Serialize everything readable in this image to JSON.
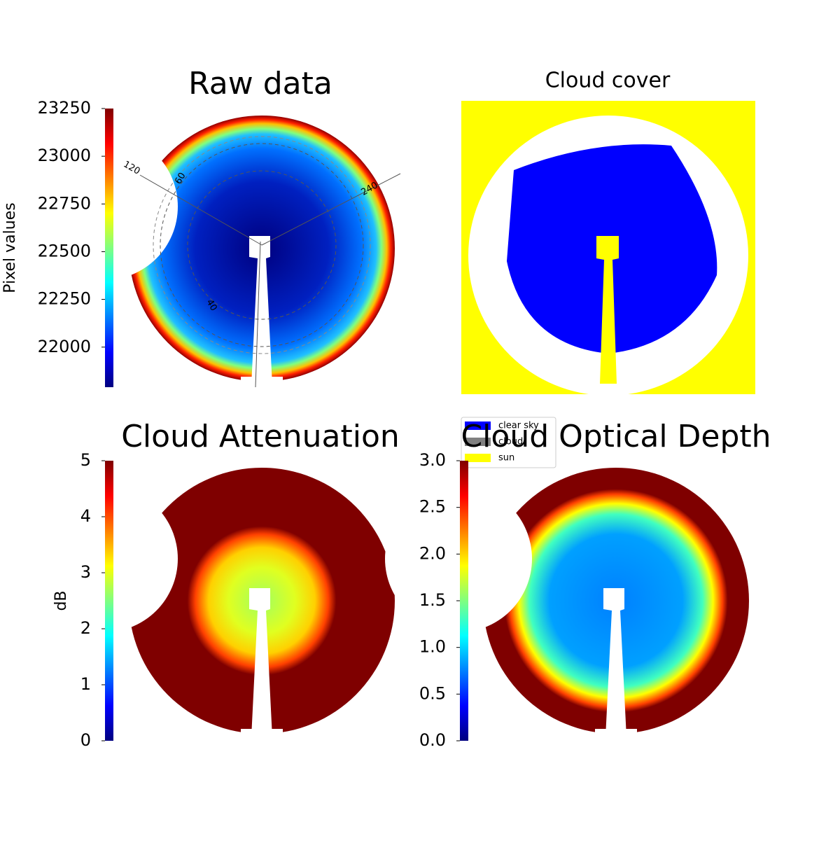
{
  "chart_data": [
    {
      "type": "image",
      "title": "Raw data",
      "colorbar_label": "Pixel values",
      "ylim": [
        21790,
        23250
      ],
      "yticks": [
        22000,
        22250,
        22500,
        22750,
        23000,
        23250
      ],
      "annotations": [
        "120",
        "60",
        "240",
        "40"
      ]
    },
    {
      "type": "image",
      "title": "Cloud cover",
      "legend": [
        {
          "name": "clear sky",
          "color": "#0000ff"
        },
        {
          "name": "cloud",
          "color": "#808080"
        },
        {
          "name": "sun",
          "color": "#ffff00"
        }
      ]
    },
    {
      "type": "image",
      "title": "Cloud Attenuation",
      "colorbar_label": "dB",
      "ylim": [
        0,
        5
      ],
      "yticks": [
        0,
        1,
        2,
        3,
        4,
        5
      ]
    },
    {
      "type": "image",
      "title": "Cloud Optical Depth",
      "ylim": [
        0,
        3
      ],
      "yticks": [
        {
          "value": 0,
          "label": "0.0"
        },
        {
          "value": 0.5,
          "label": "0.5"
        },
        {
          "value": 1,
          "label": "1.0"
        },
        {
          "value": 1.5,
          "label": "1.5"
        },
        {
          "value": 2,
          "label": "2.0"
        },
        {
          "value": 2.5,
          "label": "2.5"
        },
        {
          "value": 3,
          "label": "3.0"
        }
      ]
    }
  ]
}
